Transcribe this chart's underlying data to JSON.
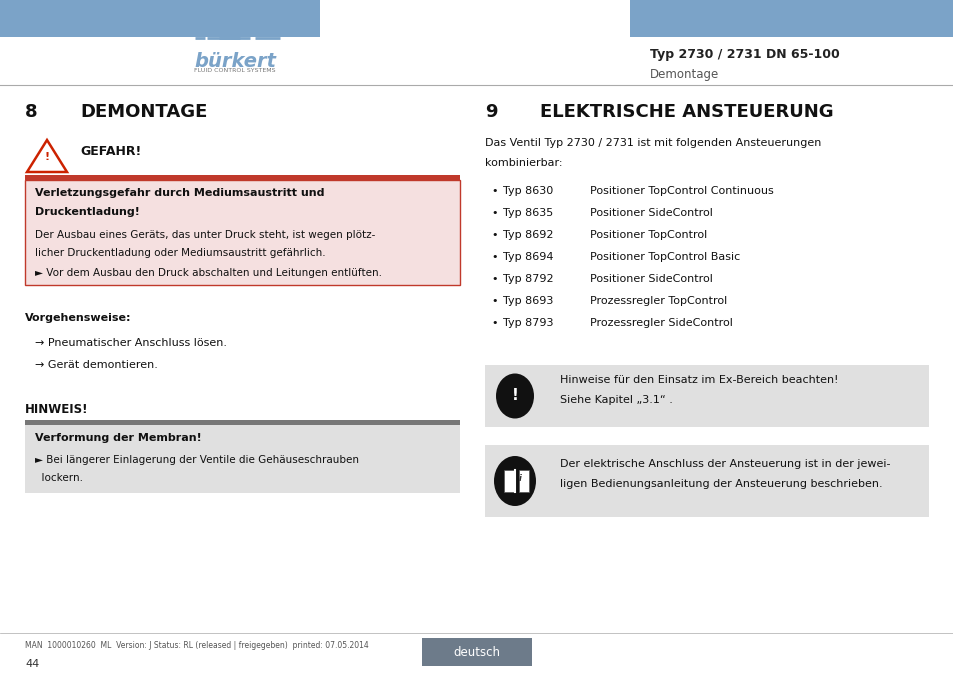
{
  "page_bg": "#ffffff",
  "header_bar_color": "#7ba3c8",
  "burkert_text": "bürkert",
  "burkert_sub": "FLUID CONTROL SYSTEMS",
  "header_right_line1": "Typ 2730 / 2731 DN 65-100",
  "header_right_line2": "Demontage",
  "section8_num": "8",
  "section8_title": "DEMONTAGE",
  "section9_num": "9",
  "section9_title": "ELEKTRISCHE ANSTEUERUNG",
  "danger_box_bg": "#f5e0e0",
  "danger_box_border": "#c0392b",
  "danger_title": "GEFAHR!",
  "danger_bar_color": "#c0392b",
  "danger_bold_line1": "Verletzungsgefahr durch Mediumsaustritt und",
  "danger_bold_line2": "Druckentladung!",
  "danger_text1_line1": "Der Ausbau eines Geräts, das unter Druck steht, ist wegen plötz-",
  "danger_text1_line2": "licher Druckentladung oder Mediumsaustritt gefährlich.",
  "danger_text2": "► Vor dem Ausbau den Druck abschalten und Leitungen entlüften.",
  "vorgehensweise_title": "Vorgehensweise:",
  "vorgehensweise_items": [
    "→ Pneumatischer Anschluss lösen.",
    "→ Gerät demontieren."
  ],
  "hinweis_title": "HINWEIS!",
  "hinweis_bar_color": "#777777",
  "hinweis_box_bg": "#e0e0e0",
  "hinweis_bold": "Verformung der Membran!",
  "hinweis_text_line1": "► Bei längerer Einlagerung der Ventile die Gehäuseschrauben",
  "hinweis_text_line2": "  lockern.",
  "section9_intro_line1": "Das Ventil Typ 2730 / 2731 ist mit folgenden Ansteuerungen",
  "section9_intro_line2": "kombinierbar:",
  "section9_items": [
    [
      "Typ 8630",
      "Positioner TopControl Continuous"
    ],
    [
      "Typ 8635",
      "Positioner SideControl"
    ],
    [
      "Typ 8692",
      "Positioner TopControl"
    ],
    [
      "Typ 8694",
      "Positioner TopControl Basic"
    ],
    [
      "Typ 8792",
      "Positioner SideControl"
    ],
    [
      "Typ 8693",
      "Prozessregler TopControl"
    ],
    [
      "Typ 8793",
      "Prozessregler SideControl"
    ]
  ],
  "note_ex_bg": "#e0e0e0",
  "note_ex_text_line1": "Hinweise für den Einsatz im Ex-Bereich beachten!",
  "note_ex_text_line2": "Siehe Kapitel „3.1“ .",
  "note_elec_bg": "#e0e0e0",
  "note_elec_text_line1": "Der elektrische Anschluss der Ansteuerung ist in der jewei-",
  "note_elec_text_line2": "ligen Bedienungsanleitung der Ansteuerung beschrieben.",
  "footer_line": "MAN  1000010260  ML  Version: J Status: RL (released | freigegeben)  printed: 07.05.2014",
  "footer_page": "44",
  "footer_lang_bg": "#6d7b8a",
  "footer_lang_text": "deutsch"
}
